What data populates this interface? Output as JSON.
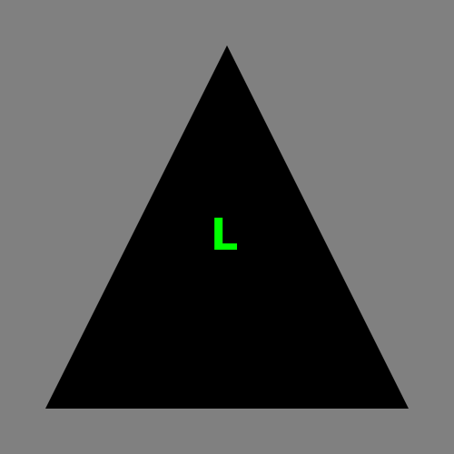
{
  "scene": {
    "background_color": "#808080",
    "triangle": {
      "fill_color": "#000000",
      "shape": "upward-pointing triangle"
    },
    "center_letter": {
      "text": "L",
      "color": "#00ff00"
    }
  }
}
